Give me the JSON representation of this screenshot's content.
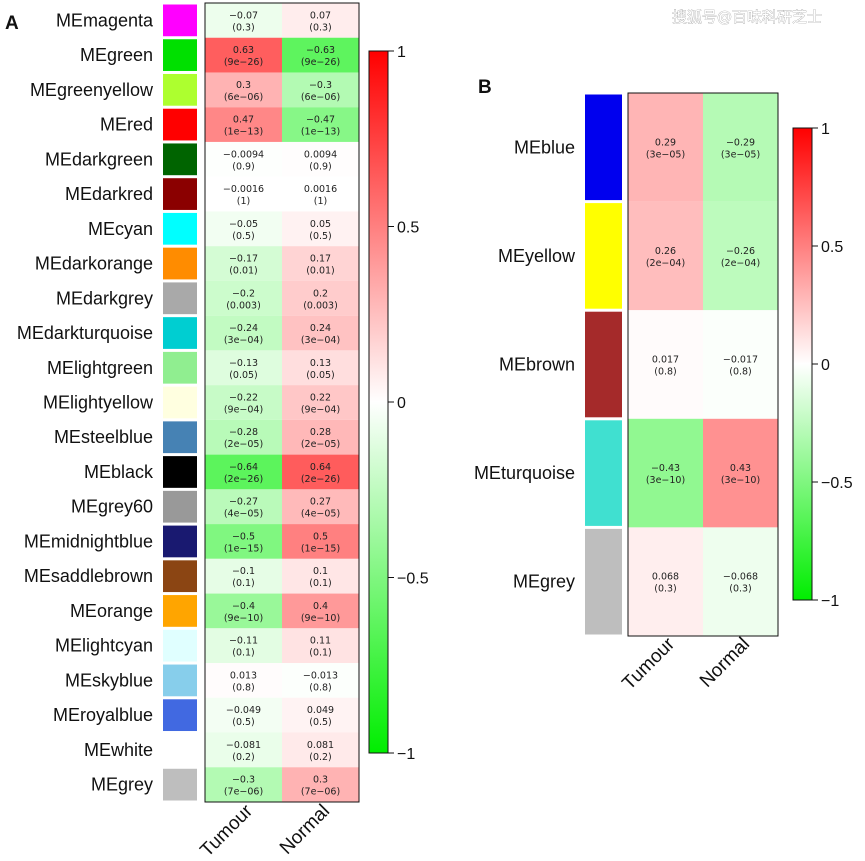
{
  "watermark": "搜狐号@百味科研芝士",
  "chart_data": [
    {
      "type": "heatmap",
      "panel": "A",
      "title": "",
      "columns": [
        "Tumour",
        "Normal"
      ],
      "colorbar": {
        "min": -1,
        "max": 1,
        "ticks": [
          "1",
          "0.5",
          "0",
          "−0.5",
          "−1"
        ],
        "low_color": "#00ee00",
        "mid_color": "#ffffff",
        "high_color": "#ff0000"
      },
      "rows": [
        {
          "name": "MEmagenta",
          "color": "#ff00ff",
          "values": [
            -0.07,
            0.07
          ],
          "cells": [
            [
              "−0.07",
              "(0.3)"
            ],
            [
              "0.07",
              "(0.3)"
            ]
          ]
        },
        {
          "name": "MEgreen",
          "color": "#00e000",
          "values": [
            0.63,
            -0.63
          ],
          "cells": [
            [
              "0.63",
              "(9e−26)"
            ],
            [
              "−0.63",
              "(9e−26)"
            ]
          ]
        },
        {
          "name": "MEgreenyellow",
          "color": "#adff2f",
          "values": [
            0.3,
            -0.3
          ],
          "cells": [
            [
              "0.3",
              "(6e−06)"
            ],
            [
              "−0.3",
              "(6e−06)"
            ]
          ]
        },
        {
          "name": "MEred",
          "color": "#ff0000",
          "values": [
            0.47,
            -0.47
          ],
          "cells": [
            [
              "0.47",
              "(1e−13)"
            ],
            [
              "−0.47",
              "(1e−13)"
            ]
          ]
        },
        {
          "name": "MEdarkgreen",
          "color": "#006400",
          "values": [
            -0.0094,
            0.0094
          ],
          "cells": [
            [
              "−0.0094",
              "(0.9)"
            ],
            [
              "0.0094",
              "(0.9)"
            ]
          ]
        },
        {
          "name": "MEdarkred",
          "color": "#8b0000",
          "values": [
            -0.0016,
            0.0016
          ],
          "cells": [
            [
              "−0.0016",
              "(1)"
            ],
            [
              "0.0016",
              "(1)"
            ]
          ]
        },
        {
          "name": "MEcyan",
          "color": "#00ffff",
          "values": [
            -0.05,
            0.05
          ],
          "cells": [
            [
              "−0.05",
              "(0.5)"
            ],
            [
              "0.05",
              "(0.5)"
            ]
          ]
        },
        {
          "name": "MEdarkorange",
          "color": "#ff8c00",
          "values": [
            -0.17,
            0.17
          ],
          "cells": [
            [
              "−0.17",
              "(0.01)"
            ],
            [
              "0.17",
              "(0.01)"
            ]
          ]
        },
        {
          "name": "MEdarkgrey",
          "color": "#a9a9a9",
          "values": [
            -0.2,
            0.2
          ],
          "cells": [
            [
              "−0.2",
              "(0.003)"
            ],
            [
              "0.2",
              "(0.003)"
            ]
          ]
        },
        {
          "name": "MEdarkturquoise",
          "color": "#00ced1",
          "values": [
            -0.24,
            0.24
          ],
          "cells": [
            [
              "−0.24",
              "(3e−04)"
            ],
            [
              "0.24",
              "(3e−04)"
            ]
          ]
        },
        {
          "name": "MElightgreen",
          "color": "#90ee90",
          "values": [
            -0.13,
            0.13
          ],
          "cells": [
            [
              "−0.13",
              "(0.05)"
            ],
            [
              "0.13",
              "(0.05)"
            ]
          ]
        },
        {
          "name": "MElightyellow",
          "color": "#ffffe0",
          "values": [
            -0.22,
            0.22
          ],
          "cells": [
            [
              "−0.22",
              "(9e−04)"
            ],
            [
              "0.22",
              "(9e−04)"
            ]
          ]
        },
        {
          "name": "MEsteelblue",
          "color": "#4682b4",
          "values": [
            -0.28,
            0.28
          ],
          "cells": [
            [
              "−0.28",
              "(2e−05)"
            ],
            [
              "0.28",
              "(2e−05)"
            ]
          ]
        },
        {
          "name": "MEblack",
          "color": "#000000",
          "values": [
            -0.64,
            0.64
          ],
          "cells": [
            [
              "−0.64",
              "(2e−26)"
            ],
            [
              "0.64",
              "(2e−26)"
            ]
          ]
        },
        {
          "name": "MEgrey60",
          "color": "#999999",
          "values": [
            -0.27,
            0.27
          ],
          "cells": [
            [
              "−0.27",
              "(4e−05)"
            ],
            [
              "0.27",
              "(4e−05)"
            ]
          ]
        },
        {
          "name": "MEmidnightblue",
          "color": "#191970",
          "values": [
            -0.5,
            0.5
          ],
          "cells": [
            [
              "−0.5",
              "(1e−15)"
            ],
            [
              "0.5",
              "(1e−15)"
            ]
          ]
        },
        {
          "name": "MEsaddlebrown",
          "color": "#8b4513",
          "values": [
            -0.1,
            0.1
          ],
          "cells": [
            [
              "−0.1",
              "(0.1)"
            ],
            [
              "0.1",
              "(0.1)"
            ]
          ]
        },
        {
          "name": "MEorange",
          "color": "#ffa500",
          "values": [
            -0.4,
            0.4
          ],
          "cells": [
            [
              "−0.4",
              "(9e−10)"
            ],
            [
              "0.4",
              "(9e−10)"
            ]
          ]
        },
        {
          "name": "MElightcyan",
          "color": "#e0ffff",
          "values": [
            -0.11,
            0.11
          ],
          "cells": [
            [
              "−0.11",
              "(0.1)"
            ],
            [
              "0.11",
              "(0.1)"
            ]
          ]
        },
        {
          "name": "MEskyblue",
          "color": "#87ceeb",
          "values": [
            0.013,
            -0.013
          ],
          "cells": [
            [
              "0.013",
              "(0.8)"
            ],
            [
              "−0.013",
              "(0.8)"
            ]
          ]
        },
        {
          "name": "MEroyalblue",
          "color": "#4169e1",
          "values": [
            -0.049,
            0.049
          ],
          "cells": [
            [
              "−0.049",
              "(0.5)"
            ],
            [
              "0.049",
              "(0.5)"
            ]
          ]
        },
        {
          "name": "MEwhite",
          "color": "#ffffff",
          "values": [
            -0.081,
            0.081
          ],
          "cells": [
            [
              "−0.081",
              "(0.2)"
            ],
            [
              "0.081",
              "(0.2)"
            ]
          ]
        },
        {
          "name": "MEgrey",
          "color": "#bebebe",
          "values": [
            -0.3,
            0.3
          ],
          "cells": [
            [
              "−0.3",
              "(7e−06)"
            ],
            [
              "0.3",
              "(7e−06)"
            ]
          ]
        }
      ]
    },
    {
      "type": "heatmap",
      "panel": "B",
      "title": "",
      "columns": [
        "Tumour",
        "Normal"
      ],
      "colorbar": {
        "min": -1,
        "max": 1,
        "ticks": [
          "1",
          "0.5",
          "0",
          "−0.5",
          "−1"
        ],
        "low_color": "#00ee00",
        "mid_color": "#ffffff",
        "high_color": "#ff0000"
      },
      "rows": [
        {
          "name": "MEblue",
          "color": "#0000ee",
          "values": [
            0.29,
            -0.29
          ],
          "cells": [
            [
              "0.29",
              "(3e−05)"
            ],
            [
              "−0.29",
              "(3e−05)"
            ]
          ]
        },
        {
          "name": "MEyellow",
          "color": "#ffff00",
          "values": [
            0.26,
            -0.26
          ],
          "cells": [
            [
              "0.26",
              "(2e−04)"
            ],
            [
              "−0.26",
              "(2e−04)"
            ]
          ]
        },
        {
          "name": "MEbrown",
          "color": "#a52a2a",
          "values": [
            0.017,
            -0.017
          ],
          "cells": [
            [
              "0.017",
              "(0.8)"
            ],
            [
              "−0.017",
              "(0.8)"
            ]
          ]
        },
        {
          "name": "MEturquoise",
          "color": "#40e0d0",
          "values": [
            -0.43,
            0.43
          ],
          "cells": [
            [
              "−0.43",
              "(3e−10)"
            ],
            [
              "0.43",
              "(3e−10)"
            ]
          ]
        },
        {
          "name": "MEgrey",
          "color": "#bebebe",
          "values": [
            0.068,
            -0.068
          ],
          "cells": [
            [
              "0.068",
              "(0.3)"
            ],
            [
              "−0.068",
              "(0.3)"
            ]
          ]
        }
      ]
    }
  ]
}
